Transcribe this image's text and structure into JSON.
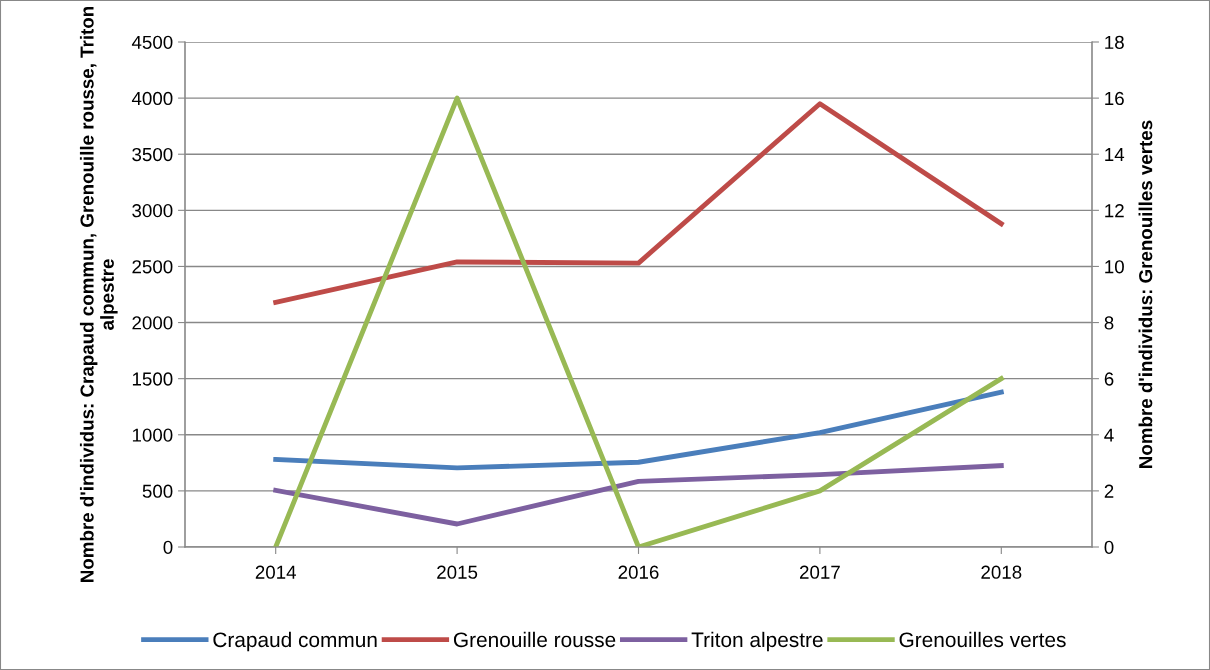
{
  "chart_data": {
    "type": "line",
    "categories": [
      "2014",
      "2015",
      "2016",
      "2017",
      "2018"
    ],
    "ylabel": "Nombre d'individus: Crapaud commun, Grenouille rousse, Triton alpestre",
    "y2label": "Nombre d'individus: Grenouilles vertes",
    "ylim": [
      0,
      4500
    ],
    "yticks": [
      0,
      500,
      1000,
      1500,
      2000,
      2500,
      3000,
      3500,
      4000,
      4500
    ],
    "y2lim": [
      0,
      18
    ],
    "y2ticks": [
      0,
      2,
      4,
      6,
      8,
      10,
      12,
      14,
      16,
      18
    ],
    "grid": "y",
    "legend": "bottom",
    "marker": "none",
    "line_style": "solid",
    "series": [
      {
        "name": "Crapaud commun",
        "color": "#4a7ebb",
        "values": [
          780,
          705,
          755,
          1020,
          1380
        ]
      },
      {
        "name": "Grenouille rousse",
        "color": "#be4b48",
        "values": [
          2180,
          2540,
          2530,
          3950,
          2880
        ]
      },
      {
        "name": "Triton alpestre",
        "color": "#7d60a0",
        "values": [
          505,
          205,
          585,
          645,
          725
        ]
      },
      {
        "name": "Grenouilles vertes",
        "color": "#98b954",
        "axis": "y2",
        "values": [
          0,
          16,
          0,
          2,
          6
        ]
      }
    ]
  }
}
